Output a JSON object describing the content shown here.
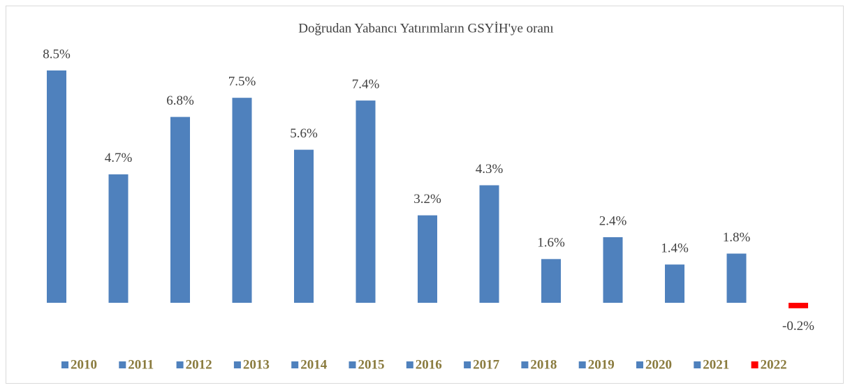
{
  "chart_data": {
    "type": "bar",
    "title": "Doğrudan Yabancı Yatırımların GSYİH'ye oranı",
    "series": [
      {
        "name": "2010",
        "color": "#4f81bd",
        "values": [
          8.5
        ],
        "value_labels": [
          "8.5%"
        ]
      },
      {
        "name": "2011",
        "color": "#4f81bd",
        "values": [
          4.7
        ],
        "value_labels": [
          "4.7%"
        ]
      },
      {
        "name": "2012",
        "color": "#4f81bd",
        "values": [
          6.8
        ],
        "value_labels": [
          "6.8%"
        ]
      },
      {
        "name": "2013",
        "color": "#4f81bd",
        "values": [
          7.5
        ],
        "value_labels": [
          "7.5%"
        ]
      },
      {
        "name": "2014",
        "color": "#4f81bd",
        "values": [
          5.6
        ],
        "value_labels": [
          "5.6%"
        ]
      },
      {
        "name": "2015",
        "color": "#4f81bd",
        "values": [
          7.4
        ],
        "value_labels": [
          "7.4%"
        ]
      },
      {
        "name": "2016",
        "color": "#4f81bd",
        "values": [
          3.2
        ],
        "value_labels": [
          "3.2%"
        ]
      },
      {
        "name": "2017",
        "color": "#4f81bd",
        "values": [
          4.3
        ],
        "value_labels": [
          "4.3%"
        ]
      },
      {
        "name": "2018",
        "color": "#4f81bd",
        "values": [
          1.6
        ],
        "value_labels": [
          "1.6%"
        ]
      },
      {
        "name": "2019",
        "color": "#4f81bd",
        "values": [
          2.4
        ],
        "value_labels": [
          "2.4%"
        ]
      },
      {
        "name": "2020",
        "color": "#4f81bd",
        "values": [
          1.4
        ],
        "value_labels": [
          "1.4%"
        ]
      },
      {
        "name": "2021",
        "color": "#4f81bd",
        "values": [
          1.8
        ],
        "value_labels": [
          "1.8%"
        ]
      },
      {
        "name": "2022",
        "color": "#ff0000",
        "values": [
          -0.2
        ],
        "value_labels": [
          "-0.2%"
        ]
      }
    ]
  }
}
